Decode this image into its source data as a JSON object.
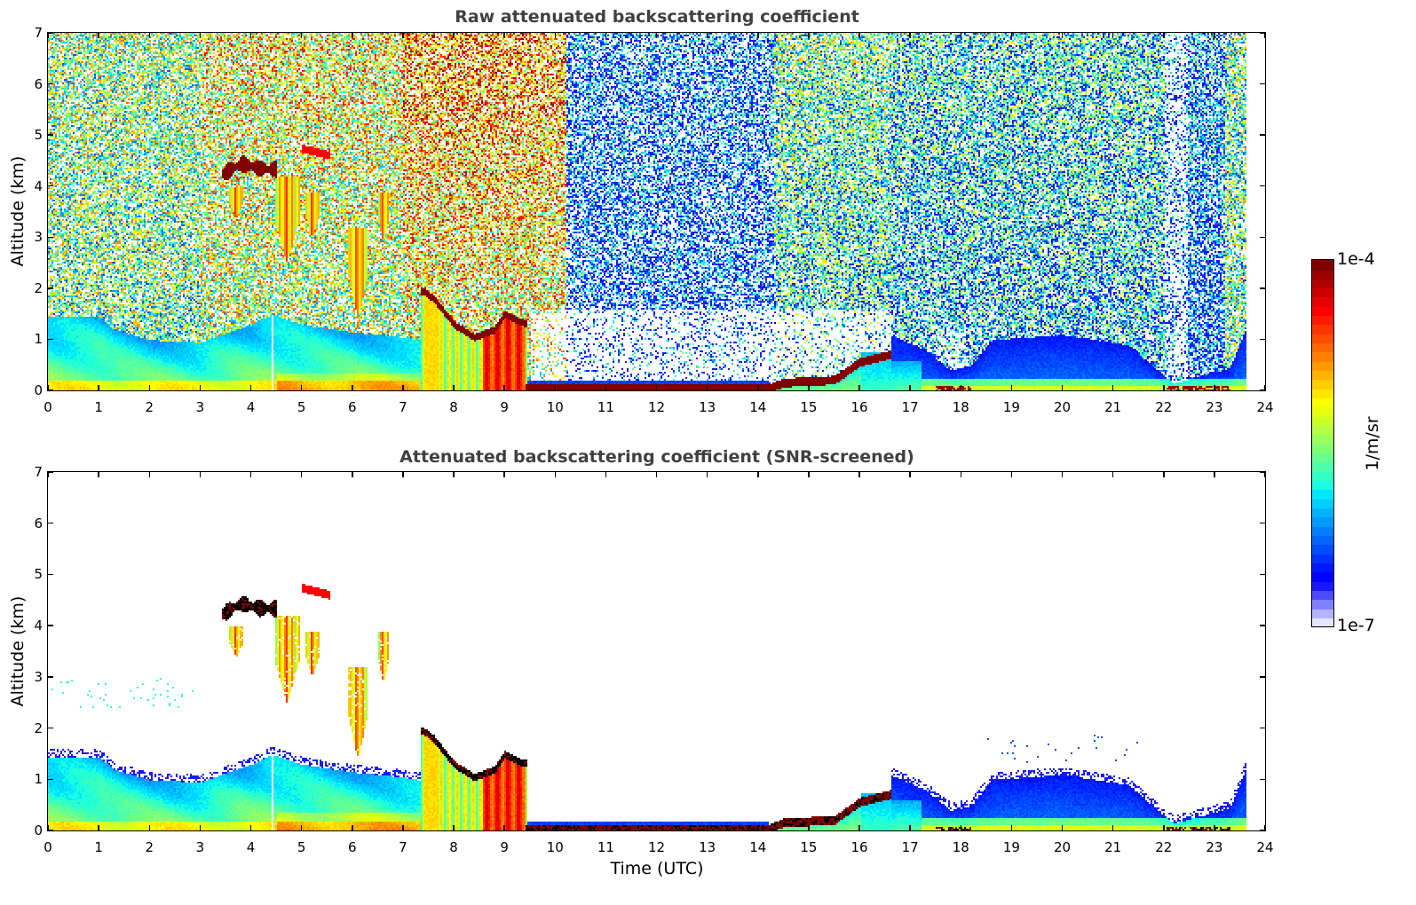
{
  "chart_data": [
    {
      "type": "heatmap",
      "title": "Raw attenuated backscattering coefficient",
      "xlabel": "",
      "ylabel": "Altitude (km)",
      "xlim": [
        0,
        24
      ],
      "ylim": [
        0,
        7
      ],
      "x_ticks": [
        "0",
        "1",
        "2",
        "3",
        "4",
        "5",
        "6",
        "7",
        "8",
        "9",
        "10",
        "11",
        "12",
        "13",
        "14",
        "15",
        "16",
        "17",
        "18",
        "19",
        "20",
        "21",
        "22",
        "23",
        "24"
      ],
      "y_ticks": [
        "0",
        "1",
        "2",
        "3",
        "4",
        "5",
        "6",
        "7"
      ],
      "data_time_range_hours": [
        0,
        23.6
      ],
      "screened": false,
      "features": {
        "boundary_layer_top_km": [
          [
            0,
            1.45
          ],
          [
            1,
            1.45
          ],
          [
            1.3,
            1.2
          ],
          [
            2,
            1.0
          ],
          [
            3,
            0.95
          ],
          [
            3.4,
            1.1
          ],
          [
            4,
            1.3
          ],
          [
            4.4,
            1.5
          ],
          [
            5,
            1.3
          ],
          [
            6,
            1.15
          ],
          [
            7,
            1.05
          ],
          [
            7.3,
            1.0
          ]
        ],
        "cloud_base_km": [
          [
            7,
            1.9
          ],
          [
            7.4,
            1.95
          ],
          [
            7.6,
            1.8
          ],
          [
            8,
            1.3
          ],
          [
            8.4,
            1.05
          ],
          [
            8.8,
            1.2
          ],
          [
            9.0,
            1.5
          ],
          [
            9.3,
            1.35
          ],
          [
            9.5,
            1.3
          ]
        ],
        "low_cloud_km": [
          [
            9.4,
            0.08
          ],
          [
            14.2,
            0.08
          ],
          [
            14.5,
            0.2
          ],
          [
            15.5,
            0.25
          ],
          [
            16,
            0.6
          ],
          [
            16.6,
            0.75
          ]
        ],
        "midlevel_cloud_km": [
          [
            3.5,
            4.3
          ],
          [
            4.5,
            4.4
          ],
          [
            5.0,
            4.7
          ],
          [
            5.5,
            4.6
          ]
        ],
        "noise_gap_hours": [
          [
            10.2,
            14.3
          ],
          [
            14.3,
            16.6
          ],
          [
            22.0,
            22.4
          ]
        ],
        "fog_bottom_hours": [
          [
            17.5,
            18.2
          ],
          [
            22.0,
            23.3
          ]
        ]
      }
    },
    {
      "type": "heatmap",
      "title": "Attenuated backscattering coefficient (SNR-screened)",
      "xlabel": "Time (UTC)",
      "ylabel": "Altitude (km)",
      "xlim": [
        0,
        24
      ],
      "ylim": [
        0,
        7
      ],
      "x_ticks": [
        "0",
        "1",
        "2",
        "3",
        "4",
        "5",
        "6",
        "7",
        "8",
        "9",
        "10",
        "11",
        "12",
        "13",
        "14",
        "15",
        "16",
        "17",
        "18",
        "19",
        "20",
        "21",
        "22",
        "23",
        "24"
      ],
      "y_ticks": [
        "0",
        "1",
        "2",
        "3",
        "4",
        "5",
        "6",
        "7"
      ],
      "data_time_range_hours": [
        0,
        23.6
      ],
      "screened": true,
      "features": {
        "boundary_layer_top_km": [
          [
            0,
            1.45
          ],
          [
            1,
            1.45
          ],
          [
            1.3,
            1.2
          ],
          [
            2,
            1.0
          ],
          [
            3,
            0.95
          ],
          [
            3.4,
            1.1
          ],
          [
            4,
            1.3
          ],
          [
            4.4,
            1.5
          ],
          [
            5,
            1.3
          ],
          [
            6,
            1.15
          ],
          [
            7,
            1.05
          ],
          [
            7.3,
            1.0
          ],
          [
            16.6,
            1.1
          ],
          [
            17.3,
            0.8
          ],
          [
            17.8,
            0.4
          ],
          [
            18.2,
            0.5
          ],
          [
            18.6,
            1.0
          ],
          [
            20,
            1.1
          ],
          [
            21.3,
            0.9
          ],
          [
            22.0,
            0.3
          ],
          [
            22.2,
            0.15
          ],
          [
            23.3,
            0.45
          ],
          [
            23.6,
            1.2
          ]
        ]
      }
    }
  ],
  "colorbar": {
    "label": "1/m/sr",
    "max_label": "1e-4",
    "min_label": "1e-7",
    "scale": "log",
    "range": [
      1e-07,
      0.0001
    ],
    "colormap": [
      "#e6e6fa",
      "#b4b4ff",
      "#8080ff",
      "#4b4bff",
      "#1818ff",
      "#0000ff",
      "#0018ff",
      "#0032ff",
      "#004cff",
      "#0066ff",
      "#0080ff",
      "#009aff",
      "#00b4ff",
      "#00cfff",
      "#00e6ff",
      "#1affe0",
      "#33ffc4",
      "#4dffaa",
      "#66ff90",
      "#80ff76",
      "#99ff5c",
      "#b3ff42",
      "#ccff28",
      "#e6ff0e",
      "#ffff00",
      "#ffe600",
      "#ffcc00",
      "#ffb300",
      "#ff9900",
      "#ff8000",
      "#ff6600",
      "#ff4d00",
      "#ff3300",
      "#ff1a00",
      "#ff0000",
      "#e60000",
      "#cc0000",
      "#b30000",
      "#990000",
      "#800000"
    ]
  }
}
